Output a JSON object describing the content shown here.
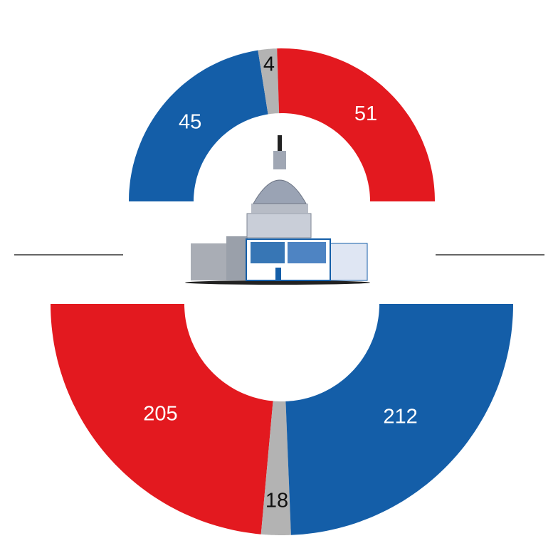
{
  "chart_data": [
    {
      "type": "donut",
      "orientation": "upper",
      "values": [
        45,
        4,
        51
      ],
      "colors": [
        "#145ea8",
        "#b3b3b3",
        "#e3191f"
      ],
      "label_colors": [
        "#ffffff",
        "#111111",
        "#ffffff"
      ]
    },
    {
      "type": "donut",
      "orientation": "lower",
      "values": [
        205,
        18,
        212
      ],
      "colors": [
        "#e3191f",
        "#b3b3b3",
        "#145ea8"
      ],
      "label_colors": [
        "#ffffff",
        "#111111",
        "#ffffff"
      ]
    }
  ]
}
